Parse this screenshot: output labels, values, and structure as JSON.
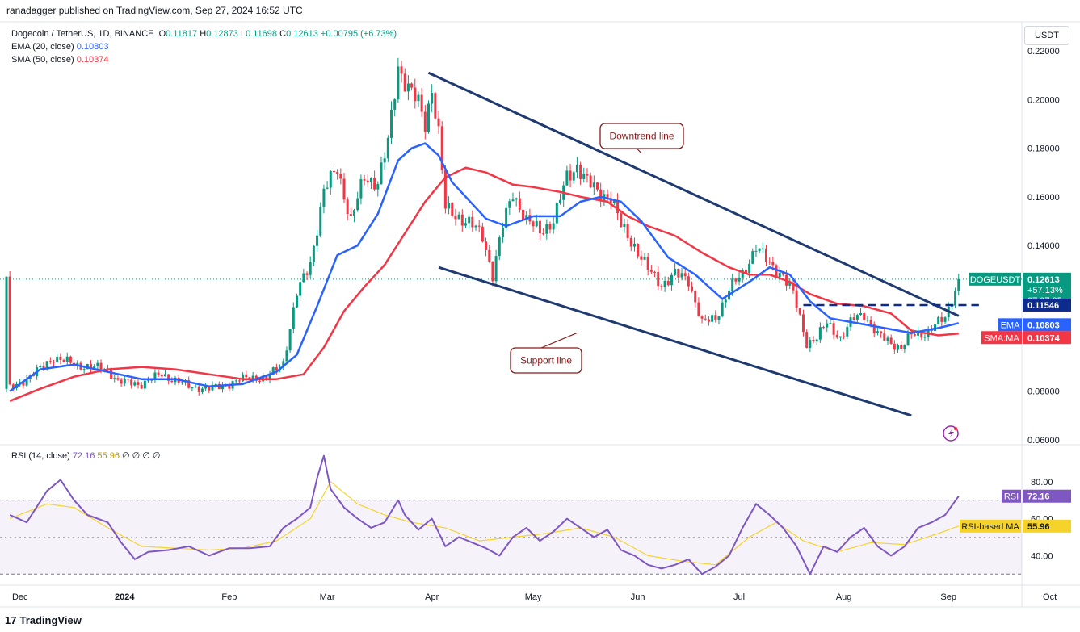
{
  "header": {
    "published": "ranadagger published on TradingView.com, Sep 27, 2024 16:52 UTC"
  },
  "legend": {
    "symbol": "Dogecoin / TetherUS, 1D, BINANCE",
    "o_label": "O",
    "o": "0.11817",
    "h_label": "H",
    "h": "0.12873",
    "l_label": "L",
    "l": "0.11698",
    "c_label": "C",
    "c": "0.12613",
    "change": "+0.00795 (+6.73%)",
    "ema_label": "EMA (20, close)",
    "ema": "0.10803",
    "sma_label": "SMA (50, close)",
    "sma": "0.10374"
  },
  "rsi_legend": {
    "label": "RSI (14, close)",
    "rsi": "72.16",
    "ma": "55.96",
    "rest": "∅ ∅ ∅ ∅"
  },
  "currency_button": "USDT",
  "brand": {
    "logo": "17",
    "name": "TradingView"
  },
  "colors": {
    "up": "#089981",
    "down": "#f23645",
    "ema": "#2962ff",
    "sma": "#f23645",
    "rsi": "#7e57c2",
    "rsi_ma": "#f5d32b",
    "trend": "#1e3a70"
  },
  "chart_data": {
    "type": "candlestick",
    "price_axis": {
      "ticks": [
        "0.22000",
        "0.20000",
        "0.18000",
        "0.16000",
        "0.14000",
        "0.08000",
        "0.06000"
      ],
      "ylim": [
        0.058,
        0.232
      ]
    },
    "time_axis": {
      "ticks": [
        "Dec",
        "2024",
        "Feb",
        "Mar",
        "Apr",
        "May",
        "Jun",
        "Jul",
        "Aug",
        "Sep",
        "Oct"
      ]
    },
    "series": [
      {
        "name": "DOGEUSDT",
        "close_path": [
          [
            1,
            0.081
          ],
          [
            8,
            0.087
          ],
          [
            14,
            0.094
          ],
          [
            20,
            0.091
          ],
          [
            25,
            0.09
          ],
          [
            30,
            0.089
          ],
          [
            33,
            0.084
          ],
          [
            40,
            0.083
          ],
          [
            46,
            0.087
          ],
          [
            54,
            0.082
          ],
          [
            60,
            0.081
          ],
          [
            66,
            0.083
          ],
          [
            72,
            0.086
          ],
          [
            77,
            0.085
          ],
          [
            82,
            0.092
          ],
          [
            86,
            0.12
          ],
          [
            90,
            0.133
          ],
          [
            94,
            0.162
          ],
          [
            98,
            0.172
          ],
          [
            102,
            0.15
          ],
          [
            106,
            0.168
          ],
          [
            110,
            0.166
          ],
          [
            113,
            0.182
          ],
          [
            116,
            0.214
          ],
          [
            119,
            0.205
          ],
          [
            122,
            0.198
          ],
          [
            124,
            0.19
          ],
          [
            126,
            0.205
          ],
          [
            128,
            0.186
          ],
          [
            130,
            0.155
          ],
          [
            134,
            0.152
          ],
          [
            138,
            0.148
          ],
          [
            141,
            0.144
          ],
          [
            144,
            0.128
          ],
          [
            147,
            0.148
          ],
          [
            150,
            0.162
          ],
          [
            154,
            0.15
          ],
          [
            158,
            0.146
          ],
          [
            162,
            0.15
          ],
          [
            166,
            0.168
          ],
          [
            169,
            0.173
          ],
          [
            172,
            0.166
          ],
          [
            175,
            0.162
          ],
          [
            179,
            0.16
          ],
          [
            182,
            0.148
          ],
          [
            186,
            0.14
          ],
          [
            190,
            0.13
          ],
          [
            194,
            0.124
          ],
          [
            198,
            0.128
          ],
          [
            202,
            0.126
          ],
          [
            206,
            0.108
          ],
          [
            210,
            0.11
          ],
          [
            214,
            0.122
          ],
          [
            218,
            0.128
          ],
          [
            222,
            0.14
          ],
          [
            226,
            0.132
          ],
          [
            230,
            0.128
          ],
          [
            233,
            0.12
          ],
          [
            237,
            0.1
          ],
          [
            240,
            0.102
          ],
          [
            243,
            0.108
          ],
          [
            247,
            0.102
          ],
          [
            251,
            0.11
          ],
          [
            254,
            0.112
          ],
          [
            258,
            0.103
          ],
          [
            262,
            0.1
          ],
          [
            265,
            0.098
          ],
          [
            268,
            0.103
          ],
          [
            272,
            0.104
          ],
          [
            276,
            0.108
          ],
          [
            278,
            0.11
          ],
          [
            280,
            0.118
          ],
          [
            282,
            0.12613
          ]
        ]
      },
      {
        "name": "EMA (20, close)",
        "path": [
          [
            1,
            0.08
          ],
          [
            10,
            0.089
          ],
          [
            20,
            0.091
          ],
          [
            30,
            0.088
          ],
          [
            40,
            0.085
          ],
          [
            50,
            0.085
          ],
          [
            60,
            0.082
          ],
          [
            70,
            0.083
          ],
          [
            80,
            0.088
          ],
          [
            86,
            0.095
          ],
          [
            92,
            0.115
          ],
          [
            98,
            0.136
          ],
          [
            104,
            0.14
          ],
          [
            110,
            0.153
          ],
          [
            116,
            0.175
          ],
          [
            120,
            0.18
          ],
          [
            124,
            0.182
          ],
          [
            128,
            0.177
          ],
          [
            132,
            0.166
          ],
          [
            136,
            0.16
          ],
          [
            142,
            0.151
          ],
          [
            148,
            0.148
          ],
          [
            156,
            0.152
          ],
          [
            164,
            0.152
          ],
          [
            170,
            0.158
          ],
          [
            176,
            0.16
          ],
          [
            182,
            0.158
          ],
          [
            188,
            0.15
          ],
          [
            196,
            0.135
          ],
          [
            204,
            0.128
          ],
          [
            212,
            0.118
          ],
          [
            220,
            0.125
          ],
          [
            226,
            0.131
          ],
          [
            232,
            0.128
          ],
          [
            238,
            0.117
          ],
          [
            244,
            0.11
          ],
          [
            252,
            0.108
          ],
          [
            260,
            0.106
          ],
          [
            268,
            0.104
          ],
          [
            276,
            0.106
          ],
          [
            282,
            0.10803
          ]
        ]
      },
      {
        "name": "SMA (50, close)",
        "path": [
          [
            1,
            0.076
          ],
          [
            10,
            0.081
          ],
          [
            20,
            0.086
          ],
          [
            30,
            0.089
          ],
          [
            40,
            0.09
          ],
          [
            50,
            0.089
          ],
          [
            60,
            0.087
          ],
          [
            70,
            0.085
          ],
          [
            80,
            0.085
          ],
          [
            88,
            0.087
          ],
          [
            94,
            0.098
          ],
          [
            100,
            0.113
          ],
          [
            106,
            0.123
          ],
          [
            112,
            0.132
          ],
          [
            118,
            0.145
          ],
          [
            124,
            0.158
          ],
          [
            130,
            0.168
          ],
          [
            136,
            0.172
          ],
          [
            142,
            0.17
          ],
          [
            150,
            0.165
          ],
          [
            156,
            0.164
          ],
          [
            164,
            0.162
          ],
          [
            170,
            0.16
          ],
          [
            178,
            0.158
          ],
          [
            184,
            0.152
          ],
          [
            190,
            0.148
          ],
          [
            198,
            0.144
          ],
          [
            206,
            0.137
          ],
          [
            214,
            0.131
          ],
          [
            220,
            0.128
          ],
          [
            226,
            0.128
          ],
          [
            232,
            0.125
          ],
          [
            238,
            0.12
          ],
          [
            246,
            0.116
          ],
          [
            254,
            0.115
          ],
          [
            262,
            0.112
          ],
          [
            268,
            0.105
          ],
          [
            276,
            0.103
          ],
          [
            282,
            0.10374
          ]
        ]
      }
    ],
    "price_labels": [
      {
        "text": "DOGEUSDT",
        "value": "0.12613",
        "sub1": "+57.13%",
        "sub2": "07:07:05",
        "color": "#089981"
      },
      {
        "text": "",
        "value": "0.11546",
        "color": "#0d2b8c"
      },
      {
        "text": "EMA",
        "value": "0.10803",
        "color": "#2962ff"
      },
      {
        "text": "SMA:MA",
        "value": "0.10374",
        "color": "#f23645"
      }
    ],
    "annotations": [
      "Downtrend line",
      "Support line"
    ],
    "trend_lines": [
      {
        "name": "Downtrend line",
        "from": [
          125,
          0.211
        ],
        "to": [
          282,
          0.111
        ]
      },
      {
        "name": "Support line",
        "from": [
          128,
          0.131
        ],
        "to": [
          268,
          0.07
        ]
      },
      {
        "name": "Breakout level",
        "from": [
          236,
          0.11546
        ],
        "to": [
          288,
          0.11546
        ],
        "dashed": true
      }
    ],
    "rsi": {
      "ticks": [
        "80.00",
        "60.00",
        "40.00"
      ],
      "ylim": [
        24,
        100
      ],
      "bands": [
        70,
        30
      ],
      "last": "72.16",
      "ma_last": "55.96",
      "label_rsi": "RSI",
      "label_ma": "RSI-based MA",
      "path": [
        [
          1,
          62
        ],
        [
          6,
          58
        ],
        [
          12,
          75
        ],
        [
          16,
          81
        ],
        [
          20,
          70
        ],
        [
          24,
          62
        ],
        [
          30,
          58
        ],
        [
          34,
          47
        ],
        [
          38,
          38
        ],
        [
          42,
          42
        ],
        [
          48,
          43
        ],
        [
          54,
          45
        ],
        [
          60,
          40
        ],
        [
          66,
          44
        ],
        [
          72,
          44
        ],
        [
          78,
          45
        ],
        [
          82,
          55
        ],
        [
          86,
          60
        ],
        [
          90,
          66
        ],
        [
          92,
          82
        ],
        [
          94,
          94
        ],
        [
          96,
          76
        ],
        [
          100,
          66
        ],
        [
          104,
          60
        ],
        [
          108,
          55
        ],
        [
          112,
          58
        ],
        [
          116,
          70
        ],
        [
          118,
          62
        ],
        [
          122,
          54
        ],
        [
          126,
          60
        ],
        [
          130,
          45
        ],
        [
          134,
          50
        ],
        [
          138,
          47
        ],
        [
          142,
          44
        ],
        [
          146,
          40
        ],
        [
          150,
          50
        ],
        [
          154,
          55
        ],
        [
          158,
          48
        ],
        [
          162,
          53
        ],
        [
          166,
          60
        ],
        [
          170,
          55
        ],
        [
          174,
          50
        ],
        [
          178,
          54
        ],
        [
          182,
          43
        ],
        [
          186,
          40
        ],
        [
          190,
          35
        ],
        [
          194,
          33
        ],
        [
          198,
          35
        ],
        [
          202,
          38
        ],
        [
          206,
          30
        ],
        [
          210,
          34
        ],
        [
          214,
          40
        ],
        [
          218,
          55
        ],
        [
          222,
          68
        ],
        [
          226,
          62
        ],
        [
          230,
          55
        ],
        [
          234,
          45
        ],
        [
          238,
          30
        ],
        [
          242,
          45
        ],
        [
          246,
          42
        ],
        [
          250,
          50
        ],
        [
          254,
          55
        ],
        [
          258,
          45
        ],
        [
          262,
          40
        ],
        [
          266,
          45
        ],
        [
          270,
          55
        ],
        [
          274,
          58
        ],
        [
          278,
          62
        ],
        [
          282,
          72.16
        ]
      ],
      "ma_path": [
        [
          1,
          60
        ],
        [
          12,
          68
        ],
        [
          20,
          66
        ],
        [
          30,
          55
        ],
        [
          40,
          45
        ],
        [
          50,
          44
        ],
        [
          60,
          43
        ],
        [
          70,
          44
        ],
        [
          80,
          48
        ],
        [
          90,
          60
        ],
        [
          96,
          80
        ],
        [
          104,
          68
        ],
        [
          112,
          62
        ],
        [
          120,
          58
        ],
        [
          130,
          55
        ],
        [
          140,
          48
        ],
        [
          150,
          50
        ],
        [
          160,
          52
        ],
        [
          170,
          55
        ],
        [
          180,
          50
        ],
        [
          190,
          40
        ],
        [
          200,
          37
        ],
        [
          210,
          35
        ],
        [
          220,
          50
        ],
        [
          228,
          58
        ],
        [
          236,
          48
        ],
        [
          246,
          42
        ],
        [
          256,
          47
        ],
        [
          266,
          46
        ],
        [
          276,
          52
        ],
        [
          282,
          55.96
        ]
      ]
    }
  }
}
